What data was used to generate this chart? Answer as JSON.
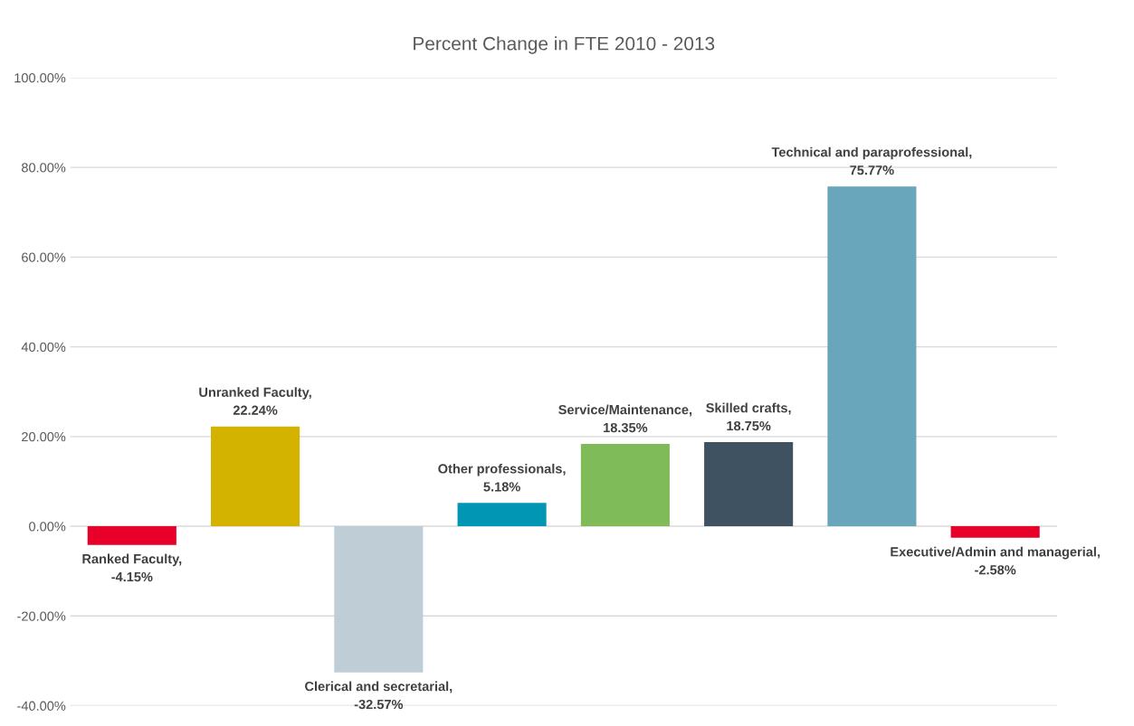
{
  "chart_data": {
    "type": "bar",
    "title": "Percent Change in FTE 2010 - 2013",
    "categories": [
      null,
      null,
      null,
      null,
      null,
      null,
      null,
      null
    ],
    "values": [
      -4.15,
      22.24,
      -32.57,
      5.18,
      18.35,
      18.75,
      75.77,
      -2.58
    ],
    "colors": [
      "#e8002a",
      "#d4b200",
      "#bfcdd6",
      "#0096b4",
      "#80bb5a",
      "#3f5261",
      "#6aa6bb",
      "#e8002a"
    ],
    "value_labels": [
      "Ranked Faculty,\n-4.15%",
      "Unranked Faculty,\n22.24%",
      "Clerical and secretarial,\n-32.57%",
      "Other professionals,\n5.18%",
      "Service/Maintenance,\n18.35%",
      "Skilled crafts,\n18.75%",
      "Technical and paraprofessional,\n75.77%",
      "Executive/Admin and managerial,\n-2.58%"
    ],
    "ylim": [
      -40,
      100
    ],
    "yticks": [
      {
        "value": -40,
        "label": "-40.00%"
      },
      {
        "value": -20,
        "label": "-20.00%"
      },
      {
        "value": 0,
        "label": "0.00%"
      },
      {
        "value": 20,
        "label": "20.00%"
      },
      {
        "value": 40,
        "label": "40.00%"
      },
      {
        "value": 60,
        "label": "60.00%"
      },
      {
        "value": 80,
        "label": "80.00%"
      },
      {
        "value": 100,
        "label": "100.00%"
      }
    ],
    "grid": "y"
  }
}
